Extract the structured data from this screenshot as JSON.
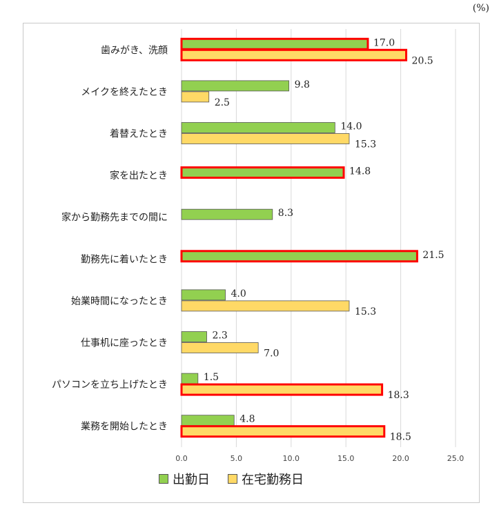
{
  "unit_label": "(%)",
  "colors": {
    "series1": "#92d050",
    "series2": "#ffd966",
    "highlight": "#ff0000",
    "grid": "#d9d9d9"
  },
  "chart_data": {
    "type": "bar",
    "orientation": "horizontal",
    "categories": [
      "歯みがき、洗顔",
      "メイクを終えたとき",
      "着替えたとき",
      "家を出たとき",
      "家から勤務先までの間に",
      "勤務先に着いたとき",
      "始業時間になったとき",
      "仕事机に座ったとき",
      "パソコンを立ち上げたとき",
      "業務を開始したとき"
    ],
    "series": [
      {
        "name": "出勤日",
        "values": [
          17.0,
          9.8,
          14.0,
          14.8,
          8.3,
          21.5,
          4.0,
          2.3,
          1.5,
          4.8
        ],
        "labels": [
          "17.0",
          "9.8",
          "14.0",
          "14.8",
          "8.3",
          "21.5",
          "4.0",
          "2.3",
          "1.5",
          "4.8"
        ],
        "highlighted": [
          true,
          false,
          false,
          true,
          false,
          true,
          false,
          false,
          false,
          false
        ]
      },
      {
        "name": "在宅勤務日",
        "values": [
          20.5,
          2.5,
          15.3,
          null,
          null,
          null,
          15.3,
          7.0,
          18.3,
          18.5
        ],
        "labels": [
          "20.5",
          "2.5",
          "15.3",
          "",
          "",
          "",
          "15.3",
          "7.0",
          "18.3",
          "18.5"
        ],
        "highlighted": [
          true,
          false,
          false,
          false,
          false,
          false,
          false,
          false,
          true,
          true
        ]
      }
    ],
    "xlim": [
      0,
      25
    ],
    "xticks": [
      "0.0",
      "5.0",
      "10.0",
      "15.0",
      "20.0",
      "25.0"
    ],
    "grid": true,
    "legend_position": "bottom"
  },
  "legend": {
    "items": [
      "出勤日",
      "在宅勤務日"
    ]
  }
}
